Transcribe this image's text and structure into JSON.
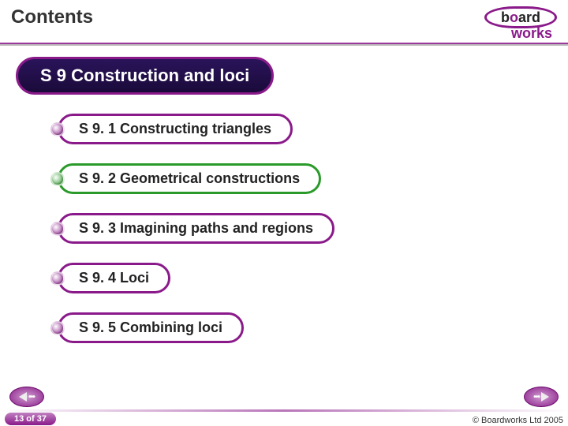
{
  "header": {
    "title": "Contents",
    "logo_main": "board",
    "logo_sub": "works"
  },
  "divider_color": "#8a1a8a",
  "main": {
    "label": "S 9 Construction and loci",
    "bg_top": "#2a145a",
    "bg_bottom": "#1a0a3a",
    "border_color": "#8a1a8a",
    "text_color": "#ffffff"
  },
  "items": [
    {
      "label": "S 9. 1 Constructing triangles",
      "bullet_color": "#8a1a8a",
      "pill_border": "#8a1a8a"
    },
    {
      "label": "S 9. 2 Geometrical constructions",
      "bullet_color": "#2a9a2a",
      "pill_border": "#2a9a2a"
    },
    {
      "label": "S 9. 3 Imagining paths and regions",
      "bullet_color": "#8a1a8a",
      "pill_border": "#8a1a8a"
    },
    {
      "label": "S 9. 4 Loci",
      "bullet_color": "#8a1a8a",
      "pill_border": "#8a1a8a"
    },
    {
      "label": "S 9. 5 Combining loci",
      "bullet_color": "#8a1a8a",
      "pill_border": "#8a1a8a"
    }
  ],
  "footer": {
    "page_label": "13 of 37",
    "copyright": "© Boardworks Ltd 2005"
  },
  "colors": {
    "brand_purple": "#8a1a8a",
    "text_dark": "#222222",
    "background": "#ffffff"
  }
}
